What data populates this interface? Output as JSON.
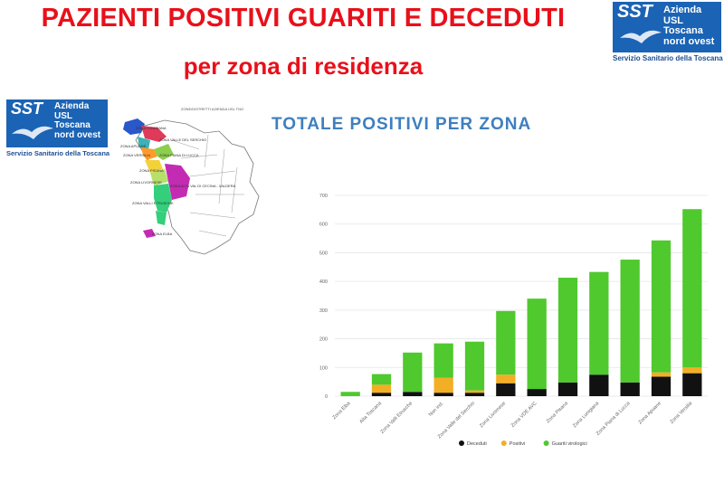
{
  "header": {
    "title_line1": "PAZIENTI POSITIVI GUARITI E DECEDUTI",
    "title_line2": "per zona di residenza"
  },
  "logo": {
    "mark": "SST",
    "line1": "Azienda",
    "line2": "USL",
    "line3": "Toscana",
    "line4": "nord ovest",
    "footer": "Servizio Sanitario della Toscana",
    "brand_color": "#1b63b4"
  },
  "map": {
    "title": "ZONE/DISTRETTI AZIENDA USL TNO",
    "labels": [
      "ZONA LUNIGIANA",
      "ZONA VALLE DEL SERCHIO",
      "ZONA APUANE",
      "ZONA VERSILIA",
      "ZONA PIANA DI LUCCA",
      "ZONA PISANA",
      "ZONA LIVORNESE",
      "ZONA ALTA VAL DI CECINA - VALDERA",
      "ZONA VALLI ETRUSCHE",
      "ZONA ELBA"
    ]
  },
  "chart_data": {
    "type": "bar",
    "stacked": true,
    "title": "TOTALE POSITIVI PER ZONA",
    "categories": [
      "Zona Elba",
      "Alta Toscana",
      "Zona Valli Etrusche",
      "Non ind.",
      "Zona Valle del Serchio",
      "Zona Livornese",
      "Zona VDE AVC",
      "Zona Pisana",
      "Zona Lunigiana",
      "Zona Piana di Lucca",
      "Zona Apuane",
      "Zona Versilia"
    ],
    "series": [
      {
        "name": "Deceduti",
        "color": "#111111",
        "values": [
          0,
          12,
          15,
          12,
          12,
          45,
          25,
          48,
          75,
          48,
          68,
          80
        ]
      },
      {
        "name": "Positivi",
        "color": "#f2ae24",
        "values": [
          0,
          28,
          0,
          52,
          8,
          30,
          0,
          0,
          0,
          0,
          15,
          20
        ]
      },
      {
        "name": "Guariti virologici",
        "color": "#4fc92e",
        "values": [
          15,
          37,
          137,
          120,
          170,
          222,
          315,
          365,
          358,
          428,
          460,
          552
        ]
      }
    ],
    "ylim": [
      0,
      700
    ],
    "yticks": [
      0,
      100,
      200,
      300,
      400,
      500,
      600,
      700
    ],
    "grid": true,
    "legend_position": "bottom"
  }
}
